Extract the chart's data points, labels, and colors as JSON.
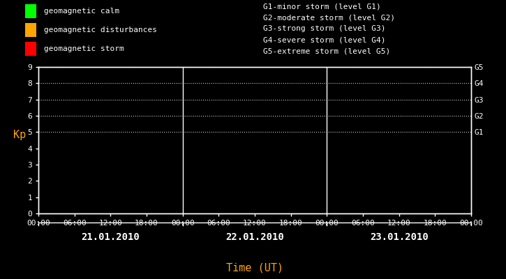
{
  "bg_color": "#000000",
  "plot_bg_color": "#000000",
  "text_color": "#ffffff",
  "orange_color": "#ffa500",
  "legend_items": [
    {
      "label": "geomagnetic calm",
      "color": "#00ff00"
    },
    {
      "label": "geomagnetic disturbances",
      "color": "#ffa500"
    },
    {
      "label": "geomagnetic storm",
      "color": "#ff0000"
    }
  ],
  "storm_legend": [
    "G1-minor storm (level G1)",
    "G2-moderate storm (level G2)",
    "G3-strong storm (level G3)",
    "G4-severe storm (level G4)",
    "G5-extreme storm (level G5)"
  ],
  "ylabel": "Kp",
  "xlabel": "Time (UT)",
  "ylim": [
    0,
    9
  ],
  "yticks": [
    0,
    1,
    2,
    3,
    4,
    5,
    6,
    7,
    8,
    9
  ],
  "right_labels": [
    {
      "y": 5,
      "label": "G1"
    },
    {
      "y": 6,
      "label": "G2"
    },
    {
      "y": 7,
      "label": "G3"
    },
    {
      "y": 8,
      "label": "G4"
    },
    {
      "y": 9,
      "label": "G5"
    }
  ],
  "dotted_lines_y": [
    5,
    6,
    7,
    8,
    9
  ],
  "days": [
    "21.01.2010",
    "22.01.2010",
    "23.01.2010"
  ],
  "num_days": 3,
  "font_family": "monospace",
  "font_size_legend": 8,
  "font_size_axis": 8,
  "font_size_storm": 8,
  "font_size_right_labels": 8,
  "font_size_day_labels": 10,
  "font_size_ylabel": 11,
  "font_size_xlabel": 11
}
